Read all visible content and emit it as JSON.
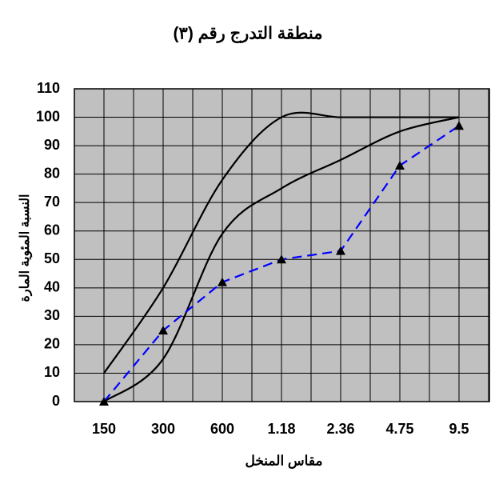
{
  "chart_data": {
    "type": "line",
    "title": "منطقة التدرج رقم (٣)",
    "x_label": "مقاس المنخل",
    "y_label": "النسبة المئوية المارة",
    "categories": [
      "150",
      "300",
      "600",
      "1.18",
      "2.36",
      "4.75",
      "9.5"
    ],
    "series": [
      {
        "color": "#000000",
        "style": "solid",
        "smooth": true,
        "values": [
          10,
          40,
          78,
          100,
          100,
          100,
          100
        ]
      },
      {
        "color": "#000000",
        "style": "solid",
        "smooth": true,
        "values": [
          0,
          15,
          59,
          75,
          85,
          95,
          100
        ]
      },
      {
        "color": "#0000ff",
        "style": "dashed",
        "marker": "triangle",
        "values": [
          0,
          25,
          42,
          50,
          53,
          83,
          97
        ]
      }
    ],
    "ylim": [
      0,
      110
    ],
    "yticks": [
      0,
      10,
      20,
      30,
      40,
      50,
      60,
      70,
      80,
      90,
      100,
      110
    ],
    "grid": true,
    "background": "#c0c0c0"
  }
}
